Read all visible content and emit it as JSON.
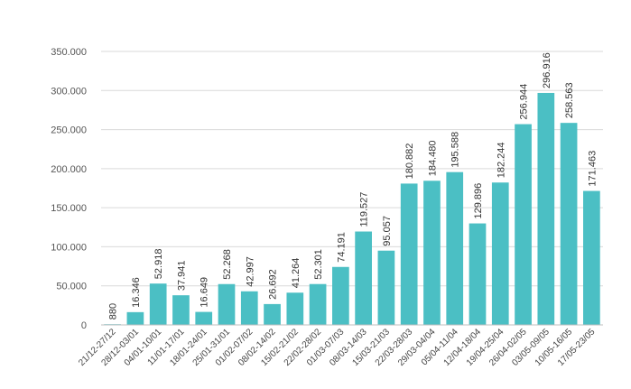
{
  "chart_data": {
    "type": "bar",
    "title": "",
    "xlabel": "",
    "ylabel": "",
    "ylim": [
      0,
      350000
    ],
    "yticks": [
      0,
      50000,
      100000,
      150000,
      200000,
      250000,
      300000,
      350000
    ],
    "ytick_labels": [
      "0",
      "50.000",
      "100.000",
      "150.000",
      "200.000",
      "250.000",
      "300.000",
      "350.000"
    ],
    "grid": true,
    "legend": "none",
    "colors": {
      "default": "#4bbfc4",
      "highlight": "#ffbf00"
    },
    "highlight_index": 22,
    "categories": [
      "21/12-27/12",
      "28/12-03/01",
      "04/01-10/01",
      "11/01-17/01",
      "18/01-24/01",
      "25/01-31/01",
      "01/02-07/02",
      "08/02-14/02",
      "15/02-21/02",
      "22/02-28/02",
      "01/03-07/03",
      "08/03-14/03",
      "15/03-21/03",
      "22/03-28/03",
      "29/03-04/04",
      "05/04-11/04",
      "12/04-18/04",
      "19/04-25/04",
      "26/04-02/05",
      "03/05-09/05",
      "10/05-16/05",
      "17/05-23/05"
    ],
    "values": [
      880,
      16346,
      52918,
      37941,
      16649,
      52268,
      42997,
      26692,
      41264,
      52301,
      74191,
      119527,
      95057,
      180882,
      184480,
      195588,
      129896,
      182244,
      256944,
      296916,
      258563,
      171463
    ],
    "value_labels": [
      "880",
      "16.346",
      "52.918",
      "37.941",
      "16.649",
      "52.268",
      "42.997",
      "26.692",
      "41.264",
      "52.301",
      "74.191",
      "119.527",
      "95.057",
      "180.882",
      "184.480",
      "195.588",
      "129.896",
      "182.244",
      "256.944",
      "296.916",
      "258.563",
      "171.463"
    ]
  }
}
